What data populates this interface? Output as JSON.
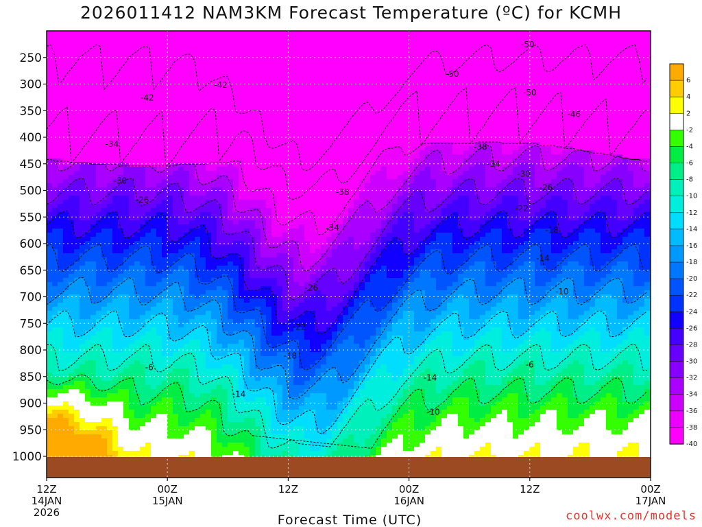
{
  "chart_data": {
    "type": "heatmap",
    "title": "2026011412 NAM3KM Forecast Temperature (ºC) for KCMH",
    "xlabel": "Forecast Time (UTC)",
    "ylabel": "",
    "y_axis": {
      "unit": "hPa",
      "range": [
        1040,
        200
      ],
      "ticks": [
        "250",
        "300",
        "350",
        "400",
        "450",
        "500",
        "550",
        "600",
        "650",
        "700",
        "750",
        "800",
        "850",
        "900",
        "950",
        "1000"
      ]
    },
    "x_axis": {
      "range_hours": [
        0,
        60
      ],
      "ticks": [
        {
          "hour": 0,
          "line1": "12Z",
          "line2": "14JAN",
          "line3": "2026"
        },
        {
          "hour": 12,
          "line1": "00Z",
          "line2": "15JAN",
          "line3": ""
        },
        {
          "hour": 24,
          "line1": "12Z",
          "line2": "",
          "line3": ""
        },
        {
          "hour": 36,
          "line1": "00Z",
          "line2": "16JAN",
          "line3": ""
        },
        {
          "hour": 48,
          "line1": "12Z",
          "line2": "",
          "line3": ""
        },
        {
          "hour": 60,
          "line1": "00Z",
          "line2": "17JAN",
          "line3": ""
        }
      ]
    },
    "grid": true,
    "colorbar": {
      "position": "right",
      "levels": [
        {
          "label": "6",
          "color": "#ffaa00"
        },
        {
          "label": "4",
          "color": "#ffcc00"
        },
        {
          "label": "2",
          "color": "#ffff00"
        },
        {
          "label": "-2",
          "color": "#ffffff"
        },
        {
          "label": "-4",
          "color": "#33ff00"
        },
        {
          "label": "-6",
          "color": "#00ee44"
        },
        {
          "label": "-8",
          "color": "#00ee88"
        },
        {
          "label": "-10",
          "color": "#00f0bb"
        },
        {
          "label": "-12",
          "color": "#00eedd"
        },
        {
          "label": "-14",
          "color": "#00ddff"
        },
        {
          "label": "-16",
          "color": "#00bbff"
        },
        {
          "label": "-18",
          "color": "#0099ff"
        },
        {
          "label": "-20",
          "color": "#0077ff"
        },
        {
          "label": "-22",
          "color": "#0055ff"
        },
        {
          "label": "-24",
          "color": "#0033ff"
        },
        {
          "label": "-26",
          "color": "#1100ff"
        },
        {
          "label": "-28",
          "color": "#4400ff"
        },
        {
          "label": "-30",
          "color": "#6600ff"
        },
        {
          "label": "-32",
          "color": "#8800ff"
        },
        {
          "label": "-34",
          "color": "#aa00ff"
        },
        {
          "label": "-36",
          "color": "#cc00ff"
        },
        {
          "label": "-38",
          "color": "#ee00ff"
        },
        {
          "label": "-40",
          "color": "#ff00ff"
        }
      ]
    },
    "ground_color": "#9b4a22",
    "contour_labels": [
      {
        "text": "-42",
        "hour": 10,
        "p": 326
      },
      {
        "text": "-42",
        "hour": 17.3,
        "p": 302
      },
      {
        "text": "-34",
        "hour": 6.5,
        "p": 413
      },
      {
        "text": "-30",
        "hour": 7.3,
        "p": 482
      },
      {
        "text": "-26",
        "hour": 9.5,
        "p": 518
      },
      {
        "text": "-50",
        "hour": 47.8,
        "p": 226
      },
      {
        "text": "-50",
        "hour": 40.3,
        "p": 281
      },
      {
        "text": "-50",
        "hour": 48,
        "p": 316
      },
      {
        "text": "-46",
        "hour": 52.4,
        "p": 357
      },
      {
        "text": "-38",
        "hour": 43.1,
        "p": 418
      },
      {
        "text": "-34",
        "hour": 44.4,
        "p": 450
      },
      {
        "text": "-30",
        "hour": 47.4,
        "p": 469
      },
      {
        "text": "-26",
        "hour": 49.6,
        "p": 495
      },
      {
        "text": "-22",
        "hour": 47.2,
        "p": 534
      },
      {
        "text": "-18",
        "hour": 50.2,
        "p": 575
      },
      {
        "text": "-14",
        "hour": 49.3,
        "p": 628
      },
      {
        "text": "-10",
        "hour": 51.2,
        "p": 690
      },
      {
        "text": "-38",
        "hour": 29.4,
        "p": 503
      },
      {
        "text": "-34",
        "hour": 28.4,
        "p": 570
      },
      {
        "text": "-26",
        "hour": 26.3,
        "p": 683
      },
      {
        "text": "-22",
        "hour": 25.1,
        "p": 757
      },
      {
        "text": "-18",
        "hour": 24.2,
        "p": 811
      },
      {
        "text": "-14",
        "hour": 19.1,
        "p": 883
      },
      {
        "text": "-14",
        "hour": 38.1,
        "p": 852
      },
      {
        "text": "-10",
        "hour": 38.4,
        "p": 917
      },
      {
        "text": "-6",
        "hour": 10.2,
        "p": 833
      },
      {
        "text": "-6",
        "hour": 48,
        "p": 828
      }
    ]
  },
  "credit": "coolwx.com/models"
}
